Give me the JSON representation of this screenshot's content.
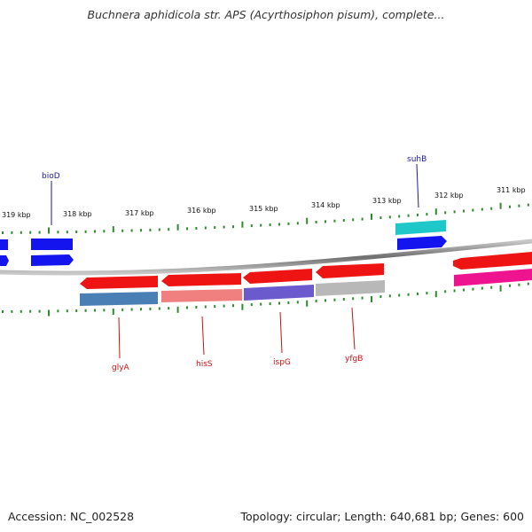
{
  "title": "Buchnera aphidicola str. APS (Acyrthosiphon pisum), complete...",
  "footer": {
    "accession": "Accession: NC_002528",
    "summary": "Topology: circular; Length: 640,681 bp; Genes: 600"
  },
  "top_scale_labels": [
    "319 kbp",
    "318 kbp",
    "317 kbp",
    "316 kbp",
    "315 kbp",
    "314 kbp",
    "313 kbp",
    "312 kbp",
    "311 kbp"
  ],
  "gene_labels_top": [
    "bioD",
    "suhB"
  ],
  "gene_labels_bottom": [
    "glyA",
    "hisS",
    "ispG",
    "yfgB"
  ],
  "colors": {
    "backbone": "#7a7a7a",
    "tick": "#2e8b2e",
    "forward_gene": "#1414ee",
    "reverse_gene": "#ee1414",
    "cyan_gene": "#1ec8c8",
    "steelblue_gene": "#4a7fb5",
    "salmon_gene": "#f08080",
    "slateblue_gene": "#6a5acd",
    "gray_gene": "#b8b8b8",
    "magenta_gene": "#ee1490"
  }
}
